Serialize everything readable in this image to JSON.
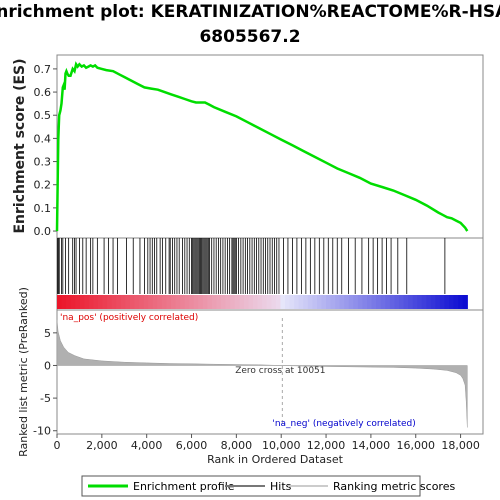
{
  "chart_data": {
    "type": "line",
    "title_line1": "Enrichment plot: KERATINIZATION%REACTOME%R-HSA-",
    "title_line2": "6805567.2",
    "xlabel": "Rank in Ordered Dataset",
    "xlim": [
      0,
      19000
    ],
    "x_ticks": [
      0,
      2000,
      4000,
      6000,
      8000,
      10000,
      12000,
      14000,
      16000,
      18000
    ],
    "x_tick_labels": [
      "0",
      "2,000",
      "4,000",
      "6,000",
      "8,000",
      "10,000",
      "12,000",
      "14,000",
      "16,000",
      "18,000"
    ],
    "es_panel": {
      "ylabel": "Enrichment score (ES)",
      "ylim": [
        -0.03,
        0.76
      ],
      "y_ticks": [
        0.0,
        0.1,
        0.2,
        0.3,
        0.4,
        0.5,
        0.6,
        0.7
      ],
      "y_tick_labels": [
        "0.0",
        "0.1",
        "0.2",
        "0.3",
        "0.4",
        "0.5",
        "0.6",
        "0.7"
      ],
      "series": [
        {
          "name": "Enrichment profile",
          "color": "#00dd00",
          "x": [
            0,
            30,
            60,
            100,
            150,
            200,
            260,
            300,
            340,
            380,
            420,
            460,
            520,
            600,
            700,
            780,
            850,
            920,
            1000,
            1100,
            1200,
            1300,
            1400,
            1500,
            1600,
            1700,
            1800,
            2000,
            2200,
            2500,
            2800,
            3000,
            3300,
            3600,
            3900,
            4200,
            4500,
            4800,
            5100,
            5400,
            5700,
            6000,
            6200,
            6400,
            6600,
            6800,
            7000,
            7500,
            8000,
            8500,
            9000,
            9500,
            10000,
            10500,
            11000,
            11500,
            12000,
            12500,
            13000,
            13500,
            14000,
            14500,
            15000,
            15500,
            16000,
            16500,
            17000,
            17200,
            17400,
            17600,
            17800,
            18000,
            18200,
            18300
          ],
          "y": [
            0.0,
            0.22,
            0.4,
            0.5,
            0.52,
            0.55,
            0.62,
            0.63,
            0.61,
            0.68,
            0.69,
            0.68,
            0.67,
            0.67,
            0.7,
            0.69,
            0.72,
            0.71,
            0.72,
            0.71,
            0.715,
            0.705,
            0.71,
            0.715,
            0.71,
            0.715,
            0.705,
            0.7,
            0.695,
            0.69,
            0.675,
            0.665,
            0.65,
            0.635,
            0.62,
            0.615,
            0.61,
            0.6,
            0.59,
            0.58,
            0.57,
            0.56,
            0.555,
            0.555,
            0.555,
            0.545,
            0.535,
            0.515,
            0.495,
            0.47,
            0.445,
            0.42,
            0.395,
            0.37,
            0.345,
            0.32,
            0.295,
            0.27,
            0.25,
            0.23,
            0.205,
            0.19,
            0.175,
            0.155,
            0.135,
            0.11,
            0.08,
            0.07,
            0.06,
            0.055,
            0.045,
            0.035,
            0.015,
            0.0
          ]
        }
      ]
    },
    "hits_panel": {
      "name": "Hits",
      "hit_positions": [
        30,
        60,
        100,
        200,
        260,
        380,
        520,
        700,
        780,
        850,
        1000,
        1150,
        1300,
        1500,
        1600,
        1800,
        2100,
        2300,
        2500,
        2700,
        3100,
        3400,
        3700,
        3900,
        4050,
        4150,
        4250,
        4350,
        4450,
        4600,
        4700,
        4850,
        5000,
        5050,
        5150,
        5250,
        5350,
        5450,
        5600,
        5700,
        5800,
        5900,
        6000,
        6050,
        6100,
        6150,
        6200,
        6250,
        6300,
        6350,
        6400,
        6450,
        6500,
        6550,
        6600,
        6650,
        6700,
        6750,
        6800,
        6900,
        7000,
        7100,
        7200,
        7300,
        7400,
        7500,
        7600,
        7700,
        7800,
        7850,
        7900,
        7950,
        8000,
        8100,
        8200,
        8300,
        8400,
        8500,
        8600,
        8700,
        8800,
        8900,
        9000,
        9100,
        9200,
        9300,
        9400,
        9500,
        9600,
        9700,
        9800,
        9900,
        10100,
        10300,
        10500,
        10700,
        10900,
        11100,
        11300,
        11500,
        11700,
        11900,
        12100,
        12300,
        12500,
        12700,
        13000,
        13300,
        13600,
        13900,
        14100,
        14300,
        14500,
        14700,
        14900,
        15200,
        15600,
        17300
      ]
    },
    "ranked_panel": {
      "ylabel": "Ranked list metric (PreRanked)",
      "ylim": [
        -10.5,
        8.5
      ],
      "y_ticks": [
        -10,
        -5,
        0,
        5
      ],
      "y_tick_labels": [
        "-10",
        "-5",
        "0",
        "5"
      ],
      "x": [
        0,
        50,
        150,
        300,
        500,
        800,
        1200,
        2000,
        3000,
        4000,
        5000,
        6000,
        7000,
        8000,
        9000,
        10051,
        11000,
        12000,
        13000,
        14000,
        15000,
        16000,
        16800,
        17400,
        17800,
        18000,
        18100,
        18200,
        18250,
        18300
      ],
      "values": [
        7.0,
        5.2,
        3.8,
        2.8,
        2.0,
        1.5,
        1.0,
        0.7,
        0.5,
        0.4,
        0.3,
        0.25,
        0.2,
        0.15,
        0.1,
        0.0,
        -0.1,
        -0.15,
        -0.2,
        -0.25,
        -0.3,
        -0.4,
        -0.55,
        -0.75,
        -1.1,
        -1.5,
        -2.0,
        -3.0,
        -5.5,
        -9.5
      ],
      "pos_label": "'na_pos' (positively correlated)",
      "neg_label": "'na_neg' (negatively correlated)",
      "zero_cross_label": "Zero cross at 10051",
      "zero_cross": 10051,
      "pos_color": "#dd0000",
      "neg_color": "#0000cc"
    },
    "legend": {
      "placement": "bottom",
      "items": [
        {
          "label": "Enrichment profile",
          "color": "#00dd00"
        },
        {
          "label": "Hits",
          "color": "#777777"
        },
        {
          "label": "Ranking metric scores",
          "color": "#cccccc"
        }
      ]
    }
  }
}
